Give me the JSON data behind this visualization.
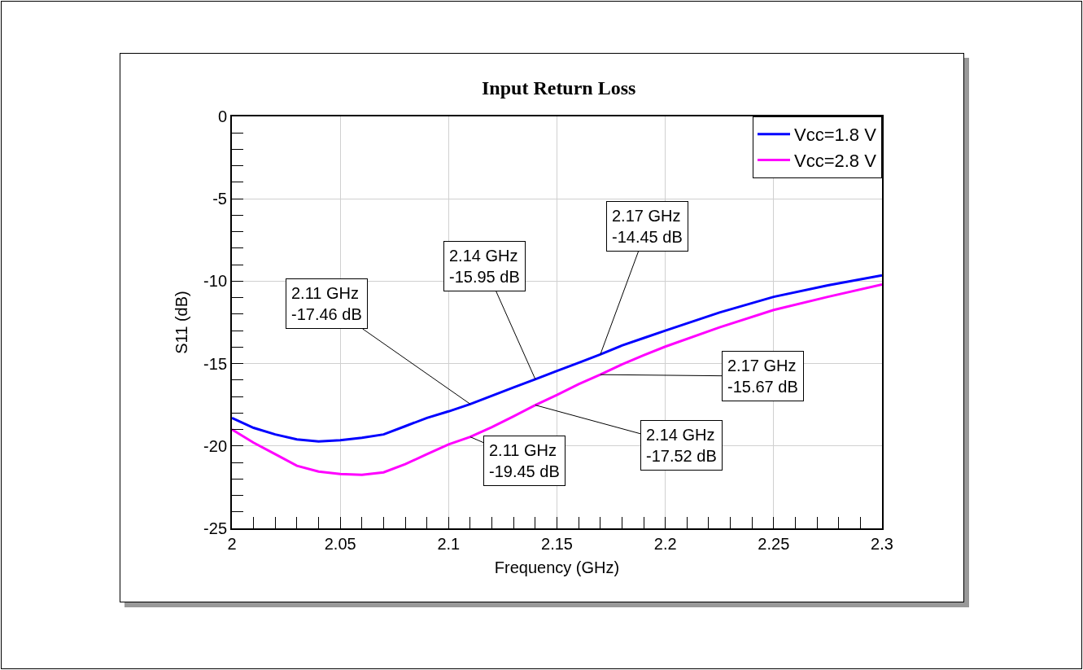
{
  "chart_data": {
    "type": "line",
    "title": "Input Return Loss",
    "xlabel": "Frequency (GHz)",
    "ylabel": "S11 (dB)",
    "xlim": [
      2,
      2.3
    ],
    "xticks": [
      2,
      2.05,
      2.1,
      2.15,
      2.2,
      2.25,
      2.3
    ],
    "ylim": [
      -25,
      0
    ],
    "yticks": [
      -25,
      -20,
      -15,
      -10,
      -5,
      0
    ],
    "grid": true,
    "legend": "top right",
    "marker": "none",
    "line_style": "solid",
    "series": [
      {
        "name": "Vcc=1.8 V",
        "color": "#0000ff",
        "x": [
          2,
          2.01,
          2.02,
          2.03,
          2.04,
          2.05,
          2.06,
          2.07,
          2.08,
          2.09,
          2.1,
          2.11,
          2.12,
          2.13,
          2.14,
          2.15,
          2.16,
          2.17,
          2.18,
          2.19,
          2.2,
          2.225,
          2.25,
          2.275,
          2.3
        ],
        "values": [
          -18.3,
          -18.9,
          -19.3,
          -19.6,
          -19.73,
          -19.65,
          -19.5,
          -19.3,
          -18.8,
          -18.3,
          -17.9,
          -17.46,
          -16.95,
          -16.45,
          -15.95,
          -15.45,
          -14.95,
          -14.45,
          -13.9,
          -13.45,
          -13.0,
          -11.9,
          -10.95,
          -10.25,
          -9.65
        ]
      },
      {
        "name": "Vcc=2.8 V",
        "color": "#ff00ff",
        "x": [
          2,
          2.01,
          2.02,
          2.03,
          2.04,
          2.05,
          2.06,
          2.07,
          2.08,
          2.09,
          2.1,
          2.11,
          2.12,
          2.13,
          2.14,
          2.15,
          2.16,
          2.17,
          2.18,
          2.19,
          2.2,
          2.225,
          2.25,
          2.275,
          2.3
        ],
        "values": [
          -19.0,
          -19.8,
          -20.5,
          -21.2,
          -21.55,
          -21.7,
          -21.75,
          -21.6,
          -21.1,
          -20.5,
          -19.9,
          -19.45,
          -18.85,
          -18.2,
          -17.52,
          -16.9,
          -16.25,
          -15.67,
          -15.05,
          -14.5,
          -13.97,
          -12.8,
          -11.75,
          -10.95,
          -10.2
        ]
      }
    ],
    "annotations": [
      {
        "text": "2.11 GHz\n-17.46 dB",
        "x": 2.11,
        "y": -17.46
      },
      {
        "text": "2.14 GHz\n-15.95 dB",
        "x": 2.14,
        "y": -15.95
      },
      {
        "text": "2.17 GHz\n-14.45 dB",
        "x": 2.17,
        "y": -14.45
      },
      {
        "text": "2.17 GHz\n-15.67 dB",
        "x": 2.17,
        "y": -15.67
      },
      {
        "text": "2.14 GHz\n-17.52 dB",
        "x": 2.14,
        "y": -17.52
      },
      {
        "text": "2.11 GHz\n-19.45 dB",
        "x": 2.11,
        "y": -19.45
      }
    ]
  }
}
